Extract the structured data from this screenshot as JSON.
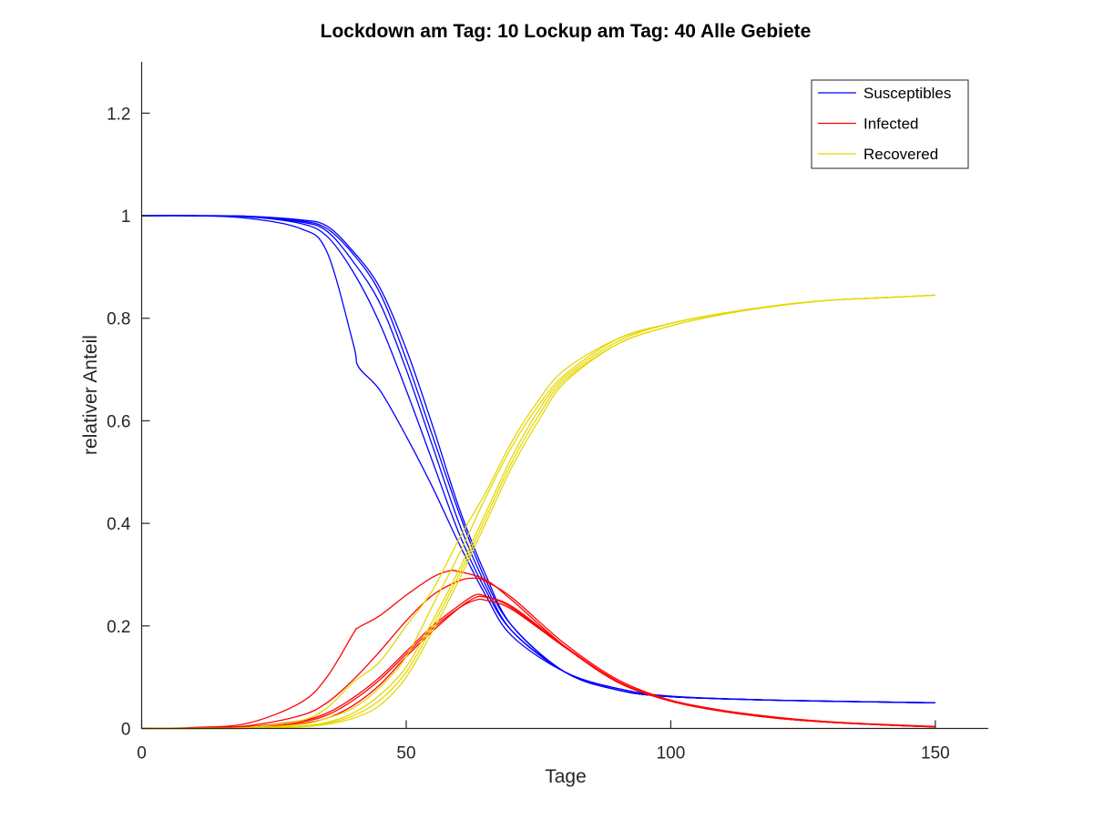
{
  "chart_data": {
    "type": "line",
    "title": "Lockdown am Tag: 10   Lockup am Tag: 40  Alle Gebiete",
    "xlabel": "Tage",
    "ylabel": "relativer Anteil",
    "xlim": [
      0,
      160
    ],
    "ylim": [
      0,
      1.3
    ],
    "x_ticks": [
      0,
      50,
      100,
      150
    ],
    "y_ticks": [
      0,
      0.2,
      0.4,
      0.6,
      0.8,
      1,
      1.2
    ],
    "x_tick_labels": [
      "0",
      "50",
      "100",
      "150"
    ],
    "y_tick_labels": [
      "0",
      "0.2",
      "0.4",
      "0.6",
      "0.8",
      "1",
      "1.2"
    ],
    "grid": false,
    "legend_position": "top-right",
    "legend": [
      {
        "name": "Susceptibles",
        "color": "#0000ff"
      },
      {
        "name": "Infected",
        "color": "#ff0000"
      },
      {
        "name": "Recovered",
        "color": "#e5d800"
      }
    ],
    "series": [
      {
        "group": "Susceptibles",
        "color": "#0000ff",
        "points": [
          [
            0,
            1.0
          ],
          [
            10,
            1.0
          ],
          [
            20,
            0.995
          ],
          [
            30,
            0.975
          ],
          [
            35,
            0.93
          ],
          [
            40,
            0.75
          ],
          [
            41,
            0.705
          ],
          [
            45,
            0.66
          ],
          [
            50,
            0.57
          ],
          [
            55,
            0.47
          ],
          [
            60,
            0.36
          ],
          [
            65,
            0.26
          ],
          [
            70,
            0.18
          ],
          [
            80,
            0.11
          ],
          [
            90,
            0.078
          ],
          [
            100,
            0.063
          ],
          [
            120,
            0.055
          ],
          [
            150,
            0.05
          ]
        ]
      },
      {
        "group": "Susceptibles",
        "color": "#0000ff",
        "points": [
          [
            0,
            1.0
          ],
          [
            10,
            1.0
          ],
          [
            20,
            0.998
          ],
          [
            30,
            0.985
          ],
          [
            35,
            0.96
          ],
          [
            40,
            0.89
          ],
          [
            45,
            0.79
          ],
          [
            50,
            0.66
          ],
          [
            55,
            0.52
          ],
          [
            60,
            0.38
          ],
          [
            65,
            0.27
          ],
          [
            70,
            0.19
          ],
          [
            80,
            0.11
          ],
          [
            90,
            0.075
          ],
          [
            100,
            0.062
          ],
          [
            120,
            0.055
          ],
          [
            150,
            0.05
          ]
        ]
      },
      {
        "group": "Susceptibles",
        "color": "#0000ff",
        "points": [
          [
            0,
            1.0
          ],
          [
            10,
            1.0
          ],
          [
            20,
            0.998
          ],
          [
            30,
            0.988
          ],
          [
            35,
            0.97
          ],
          [
            40,
            0.91
          ],
          [
            45,
            0.83
          ],
          [
            50,
            0.7
          ],
          [
            55,
            0.55
          ],
          [
            60,
            0.4
          ],
          [
            65,
            0.28
          ],
          [
            70,
            0.19
          ],
          [
            80,
            0.11
          ],
          [
            90,
            0.075
          ],
          [
            100,
            0.062
          ],
          [
            120,
            0.055
          ],
          [
            150,
            0.05
          ]
        ]
      },
      {
        "group": "Susceptibles",
        "color": "#0000ff",
        "points": [
          [
            0,
            1.0
          ],
          [
            10,
            1.0
          ],
          [
            20,
            0.999
          ],
          [
            30,
            0.99
          ],
          [
            35,
            0.975
          ],
          [
            40,
            0.925
          ],
          [
            45,
            0.85
          ],
          [
            50,
            0.72
          ],
          [
            55,
            0.57
          ],
          [
            60,
            0.42
          ],
          [
            65,
            0.29
          ],
          [
            70,
            0.2
          ],
          [
            80,
            0.11
          ],
          [
            90,
            0.075
          ],
          [
            100,
            0.062
          ],
          [
            120,
            0.055
          ],
          [
            150,
            0.05
          ]
        ]
      },
      {
        "group": "Susceptibles",
        "color": "#0000ff",
        "points": [
          [
            0,
            1.0
          ],
          [
            10,
            1.0
          ],
          [
            20,
            0.999
          ],
          [
            30,
            0.992
          ],
          [
            35,
            0.98
          ],
          [
            40,
            0.93
          ],
          [
            45,
            0.86
          ],
          [
            50,
            0.74
          ],
          [
            55,
            0.59
          ],
          [
            60,
            0.43
          ],
          [
            65,
            0.3
          ],
          [
            70,
            0.2
          ],
          [
            80,
            0.11
          ],
          [
            90,
            0.075
          ],
          [
            100,
            0.062
          ],
          [
            120,
            0.055
          ],
          [
            150,
            0.05
          ]
        ]
      },
      {
        "group": "Infected",
        "color": "#ff0000",
        "points": [
          [
            0,
            0.0
          ],
          [
            10,
            0.002
          ],
          [
            20,
            0.01
          ],
          [
            30,
            0.05
          ],
          [
            35,
            0.1
          ],
          [
            40,
            0.185
          ],
          [
            41,
            0.197
          ],
          [
            45,
            0.22
          ],
          [
            50,
            0.26
          ],
          [
            55,
            0.295
          ],
          [
            58,
            0.307
          ],
          [
            60,
            0.306
          ],
          [
            65,
            0.29
          ],
          [
            70,
            0.25
          ],
          [
            80,
            0.16
          ],
          [
            90,
            0.09
          ],
          [
            100,
            0.055
          ],
          [
            110,
            0.035
          ],
          [
            120,
            0.022
          ],
          [
            130,
            0.013
          ],
          [
            140,
            0.008
          ],
          [
            150,
            0.004
          ]
        ]
      },
      {
        "group": "Infected",
        "color": "#ff0000",
        "points": [
          [
            0,
            0.0
          ],
          [
            10,
            0.001
          ],
          [
            20,
            0.005
          ],
          [
            30,
            0.025
          ],
          [
            35,
            0.05
          ],
          [
            40,
            0.095
          ],
          [
            45,
            0.15
          ],
          [
            50,
            0.21
          ],
          [
            55,
            0.26
          ],
          [
            60,
            0.288
          ],
          [
            63,
            0.293
          ],
          [
            65,
            0.287
          ],
          [
            70,
            0.255
          ],
          [
            80,
            0.165
          ],
          [
            90,
            0.095
          ],
          [
            100,
            0.055
          ],
          [
            110,
            0.034
          ],
          [
            120,
            0.021
          ],
          [
            130,
            0.013
          ],
          [
            140,
            0.007
          ],
          [
            150,
            0.003
          ]
        ]
      },
      {
        "group": "Infected",
        "color": "#ff0000",
        "points": [
          [
            0,
            0.0
          ],
          [
            10,
            0.0
          ],
          [
            20,
            0.003
          ],
          [
            30,
            0.015
          ],
          [
            35,
            0.03
          ],
          [
            40,
            0.06
          ],
          [
            45,
            0.1
          ],
          [
            50,
            0.15
          ],
          [
            55,
            0.2
          ],
          [
            60,
            0.24
          ],
          [
            63,
            0.26
          ],
          [
            65,
            0.258
          ],
          [
            70,
            0.235
          ],
          [
            80,
            0.16
          ],
          [
            90,
            0.092
          ],
          [
            100,
            0.054
          ],
          [
            110,
            0.033
          ],
          [
            120,
            0.02
          ],
          [
            130,
            0.012
          ],
          [
            140,
            0.007
          ],
          [
            150,
            0.003
          ]
        ]
      },
      {
        "group": "Infected",
        "color": "#ff0000",
        "points": [
          [
            0,
            0.0
          ],
          [
            10,
            0.0
          ],
          [
            20,
            0.003
          ],
          [
            30,
            0.013
          ],
          [
            35,
            0.026
          ],
          [
            40,
            0.055
          ],
          [
            45,
            0.095
          ],
          [
            50,
            0.145
          ],
          [
            55,
            0.195
          ],
          [
            60,
            0.235
          ],
          [
            63,
            0.25
          ],
          [
            65,
            0.25
          ],
          [
            70,
            0.232
          ],
          [
            80,
            0.158
          ],
          [
            90,
            0.09
          ],
          [
            100,
            0.053
          ],
          [
            110,
            0.033
          ],
          [
            120,
            0.02
          ],
          [
            130,
            0.012
          ],
          [
            140,
            0.007
          ],
          [
            150,
            0.003
          ]
        ]
      },
      {
        "group": "Infected",
        "color": "#ff0000",
        "points": [
          [
            0,
            0.0
          ],
          [
            10,
            0.0
          ],
          [
            20,
            0.002
          ],
          [
            30,
            0.01
          ],
          [
            35,
            0.02
          ],
          [
            40,
            0.045
          ],
          [
            45,
            0.085
          ],
          [
            50,
            0.14
          ],
          [
            55,
            0.19
          ],
          [
            60,
            0.235
          ],
          [
            63,
            0.255
          ],
          [
            65,
            0.256
          ],
          [
            70,
            0.238
          ],
          [
            80,
            0.16
          ],
          [
            90,
            0.091
          ],
          [
            100,
            0.054
          ],
          [
            110,
            0.033
          ],
          [
            120,
            0.02
          ],
          [
            130,
            0.012
          ],
          [
            140,
            0.007
          ],
          [
            150,
            0.003
          ]
        ]
      },
      {
        "group": "Recovered",
        "color": "#e5d800",
        "points": [
          [
            0,
            0.0
          ],
          [
            10,
            0.0
          ],
          [
            20,
            0.002
          ],
          [
            30,
            0.015
          ],
          [
            35,
            0.04
          ],
          [
            40,
            0.09
          ],
          [
            45,
            0.13
          ],
          [
            50,
            0.2
          ],
          [
            55,
            0.27
          ],
          [
            60,
            0.37
          ],
          [
            65,
            0.46
          ],
          [
            70,
            0.56
          ],
          [
            75,
            0.64
          ],
          [
            80,
            0.7
          ],
          [
            90,
            0.76
          ],
          [
            100,
            0.79
          ],
          [
            110,
            0.81
          ],
          [
            120,
            0.825
          ],
          [
            130,
            0.835
          ],
          [
            140,
            0.84
          ],
          [
            150,
            0.845
          ]
        ]
      },
      {
        "group": "Recovered",
        "color": "#e5d800",
        "points": [
          [
            0,
            0.0
          ],
          [
            10,
            0.0
          ],
          [
            20,
            0.001
          ],
          [
            30,
            0.008
          ],
          [
            35,
            0.02
          ],
          [
            40,
            0.04
          ],
          [
            45,
            0.08
          ],
          [
            50,
            0.14
          ],
          [
            55,
            0.24
          ],
          [
            60,
            0.34
          ],
          [
            65,
            0.45
          ],
          [
            70,
            0.55
          ],
          [
            75,
            0.63
          ],
          [
            80,
            0.69
          ],
          [
            90,
            0.76
          ],
          [
            100,
            0.79
          ],
          [
            110,
            0.81
          ],
          [
            120,
            0.825
          ],
          [
            130,
            0.835
          ],
          [
            140,
            0.84
          ],
          [
            150,
            0.845
          ]
        ]
      },
      {
        "group": "Recovered",
        "color": "#e5d800",
        "points": [
          [
            0,
            0.0
          ],
          [
            10,
            0.0
          ],
          [
            20,
            0.001
          ],
          [
            30,
            0.005
          ],
          [
            35,
            0.012
          ],
          [
            40,
            0.03
          ],
          [
            45,
            0.065
          ],
          [
            50,
            0.12
          ],
          [
            55,
            0.21
          ],
          [
            60,
            0.31
          ],
          [
            65,
            0.42
          ],
          [
            70,
            0.53
          ],
          [
            75,
            0.62
          ],
          [
            80,
            0.685
          ],
          [
            90,
            0.755
          ],
          [
            100,
            0.79
          ],
          [
            110,
            0.81
          ],
          [
            120,
            0.825
          ],
          [
            130,
            0.835
          ],
          [
            140,
            0.84
          ],
          [
            150,
            0.845
          ]
        ]
      },
      {
        "group": "Recovered",
        "color": "#e5d800",
        "points": [
          [
            0,
            0.0
          ],
          [
            10,
            0.0
          ],
          [
            20,
            0.001
          ],
          [
            30,
            0.004
          ],
          [
            35,
            0.01
          ],
          [
            40,
            0.025
          ],
          [
            45,
            0.055
          ],
          [
            50,
            0.11
          ],
          [
            55,
            0.2
          ],
          [
            60,
            0.3
          ],
          [
            65,
            0.41
          ],
          [
            70,
            0.52
          ],
          [
            75,
            0.61
          ],
          [
            80,
            0.68
          ],
          [
            90,
            0.75
          ],
          [
            100,
            0.785
          ],
          [
            110,
            0.808
          ],
          [
            120,
            0.824
          ],
          [
            130,
            0.835
          ],
          [
            140,
            0.84
          ],
          [
            150,
            0.845
          ]
        ]
      },
      {
        "group": "Recovered",
        "color": "#e5d800",
        "points": [
          [
            0,
            0.0
          ],
          [
            10,
            0.0
          ],
          [
            20,
            0.0
          ],
          [
            30,
            0.003
          ],
          [
            35,
            0.008
          ],
          [
            40,
            0.02
          ],
          [
            45,
            0.045
          ],
          [
            50,
            0.1
          ],
          [
            55,
            0.19
          ],
          [
            60,
            0.29
          ],
          [
            65,
            0.4
          ],
          [
            70,
            0.51
          ],
          [
            75,
            0.6
          ],
          [
            80,
            0.675
          ],
          [
            90,
            0.75
          ],
          [
            100,
            0.785
          ],
          [
            110,
            0.808
          ],
          [
            120,
            0.824
          ],
          [
            130,
            0.835
          ],
          [
            140,
            0.84
          ],
          [
            150,
            0.845
          ]
        ]
      }
    ]
  }
}
